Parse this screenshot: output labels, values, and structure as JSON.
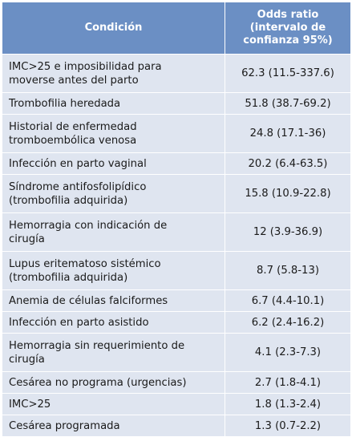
{
  "table": {
    "headers": {
      "condition": "Condición",
      "odds_ratio": "Odds ratio\n(intervalo de\nconfianza 95%)"
    },
    "rows": [
      {
        "condition": "IMC>25 e imposibilidad para\nmoverse antes del parto",
        "value": "62.3 (11.5-337.6)"
      },
      {
        "condition": "Trombofilia heredada",
        "value": "51.8 (38.7-69.2)"
      },
      {
        "condition": "Historial de enfermedad\ntromboembólica venosa",
        "value": "24.8 (17.1-36)"
      },
      {
        "condition": "Infección en parto vaginal",
        "value": "20.2 (6.4-63.5)"
      },
      {
        "condition": "Síndrome antifosfolipídico\n(trombofilia adquirida)",
        "value": "15.8 (10.9-22.8)"
      },
      {
        "condition": "Hemorragia con indicación de\ncirugía",
        "value": "12 (3.9-36.9)"
      },
      {
        "condition": "Lupus eritematoso sistémico\n(trombofilia adquirida)",
        "value": "8.7 (5.8-13)"
      },
      {
        "condition": "Anemia de células falciformes",
        "value": "6.7 (4.4-10.1)"
      },
      {
        "condition": "Infección en parto asistido",
        "value": "6.2 (2.4-16.2)"
      },
      {
        "condition": "Hemorragia sin requerimiento de\ncirugía",
        "value": "4.1 (2.3-7.3)"
      },
      {
        "condition": "Cesárea no programa (urgencias)",
        "value": "2.7 (1.8-4.1)"
      },
      {
        "condition": "IMC>25",
        "value": "1.8 (1.3-2.4)"
      },
      {
        "condition": "Cesárea programada",
        "value": "1.3 (0.7-2.2)"
      }
    ]
  },
  "colors": {
    "header_bg": "#6b8fc4",
    "row_bg": "#dfe5f0",
    "border": "#ffffff"
  }
}
